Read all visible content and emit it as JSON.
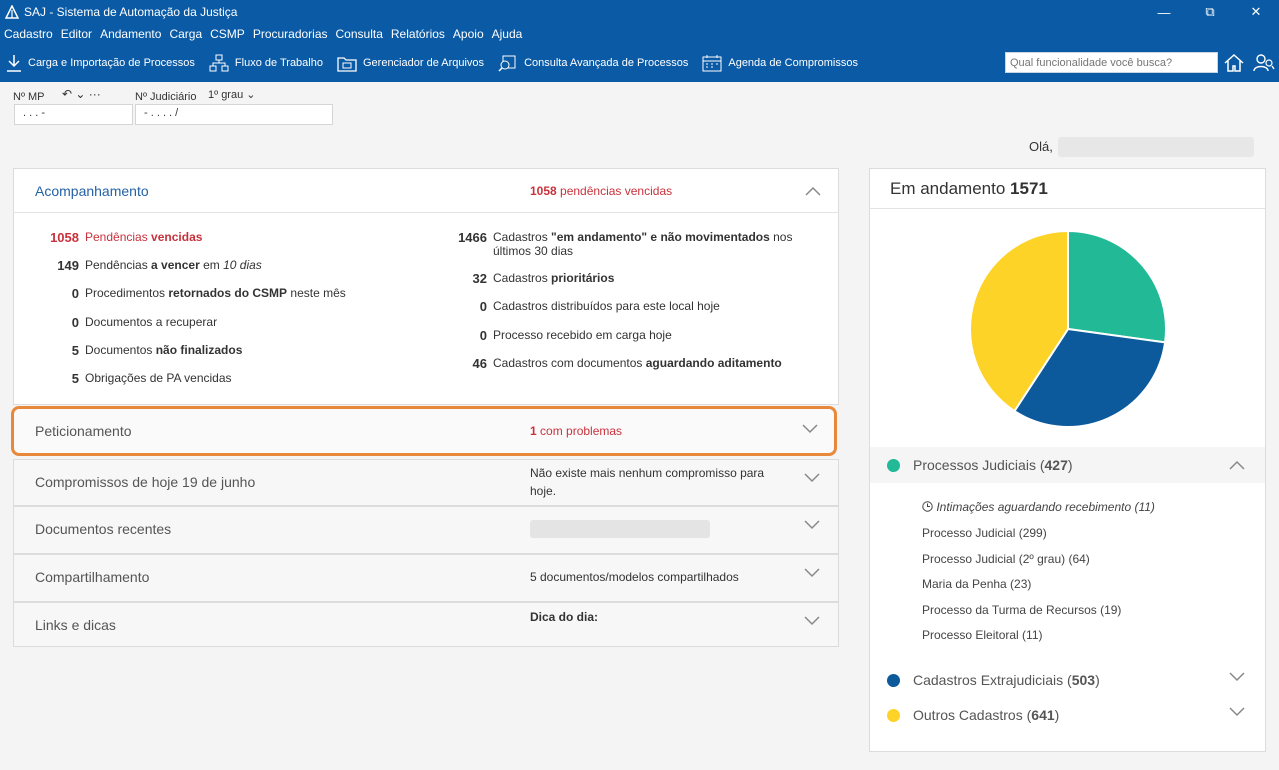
{
  "window": {
    "title": "SAJ - Sistema de Automação da Justiça",
    "controls": [
      "—",
      "⧉",
      "✕"
    ]
  },
  "menu": [
    "Cadastro",
    "Editor",
    "Andamento",
    "Carga",
    "CSMP",
    "Procuradorias",
    "Consulta",
    "Relatórios",
    "Apoio",
    "Ajuda"
  ],
  "toolbar": {
    "items": [
      {
        "label": "Carga e Importação de Processos",
        "icon": "download-icon"
      },
      {
        "label": "Fluxo de Trabalho",
        "icon": "workflow-icon"
      },
      {
        "label": "Gerenciador de Arquivos",
        "icon": "file-manager-icon"
      },
      {
        "label": "Consulta Avançada de Processos",
        "icon": "advanced-search-icon"
      },
      {
        "label": "Agenda de Compromissos",
        "icon": "calendar-icon"
      }
    ],
    "search_placeholder": "Qual funcionalidade você busca?"
  },
  "search": {
    "mp_label": "Nº MP",
    "mp_extra": "↶ ⌄ ···",
    "mp_value": ". . . -",
    "judicial_label": "Nº Judiciário",
    "grau_select": "1º grau ⌄",
    "judicial_value": "- . . . . /"
  },
  "greeting": "Olá,",
  "acompanhamento": {
    "title": "Acompanhamento",
    "summary_num": "1058",
    "summary_text": " pendências vencidas",
    "left": [
      {
        "num": "1058",
        "pre": "Pendências ",
        "bold": "vencidas",
        "post": "",
        "red": true
      },
      {
        "num": "149",
        "pre": "Pendências ",
        "bold": "a vencer",
        "post": " em ",
        "italic": "10 dias"
      },
      {
        "num": "0",
        "pre": "Procedimentos ",
        "bold": "retornados do CSMP",
        "post": " neste mês"
      },
      {
        "num": "0",
        "pre": "Documentos a recuperar",
        "bold": "",
        "post": ""
      },
      {
        "num": "5",
        "pre": "Documentos ",
        "bold": "não finalizados",
        "post": ""
      },
      {
        "num": "5",
        "pre": "Obrigações de PA vencidas",
        "bold": "",
        "post": ""
      }
    ],
    "right": [
      {
        "num": "1466",
        "pre": "Cadastros ",
        "bold": "\"em andamento\" e não movimentados",
        "post": " nos",
        "line2": "últimos 30 dias"
      },
      {
        "num": "32",
        "pre": "Cadastros ",
        "bold": "prioritários",
        "post": ""
      },
      {
        "num": "0",
        "pre": "Cadastros distribuídos para este local hoje",
        "bold": "",
        "post": ""
      },
      {
        "num": "0",
        "pre": "Processo recebido em carga hoje",
        "bold": "",
        "post": ""
      },
      {
        "num": "46",
        "pre": "Cadastros com documentos ",
        "bold": "aguardando aditamento",
        "post": ""
      }
    ]
  },
  "sections": [
    {
      "title": "Peticionamento",
      "summary_num": "1",
      "summary": " com problemas"
    },
    {
      "title": "Compromissos de hoje 19 de junho",
      "summary": "Não existe mais nenhum compromisso para hoje."
    },
    {
      "title": "Documentos recentes",
      "summary": ""
    },
    {
      "title": "Compartilhamento",
      "summary": "5 documentos/modelos compartilhados"
    },
    {
      "title": "Links e dicas",
      "summary": "Dica do dia:"
    }
  ],
  "em_andamento": {
    "title": "Em andamento",
    "total": "1571"
  },
  "chart_data": {
    "type": "pie",
    "categories": [
      "Processos Judiciais",
      "Cadastros Extrajudiciais",
      "Outros Cadastros"
    ],
    "values": [
      427,
      503,
      641
    ],
    "colors": [
      "#21b996",
      "#0c5a9c",
      "#fdd327"
    ]
  },
  "legend": [
    {
      "label": "Processos Judiciais",
      "count": "427",
      "color": "#21b996"
    },
    {
      "label": "Cadastros Extrajudiciais",
      "count": "503",
      "color": "#0c5a9c"
    },
    {
      "label": "Outros Cadastros",
      "count": "641",
      "color": "#fdd327"
    }
  ],
  "processos_judiciais_items": [
    "Intimações aguardando recebimento (11)",
    "Processo Judicial (299)",
    "Processo Judicial (2º grau) (64)",
    "Maria da Penha (23)",
    "Processo da Turma de Recursos (19)",
    "Processo Eleitoral (11)"
  ]
}
